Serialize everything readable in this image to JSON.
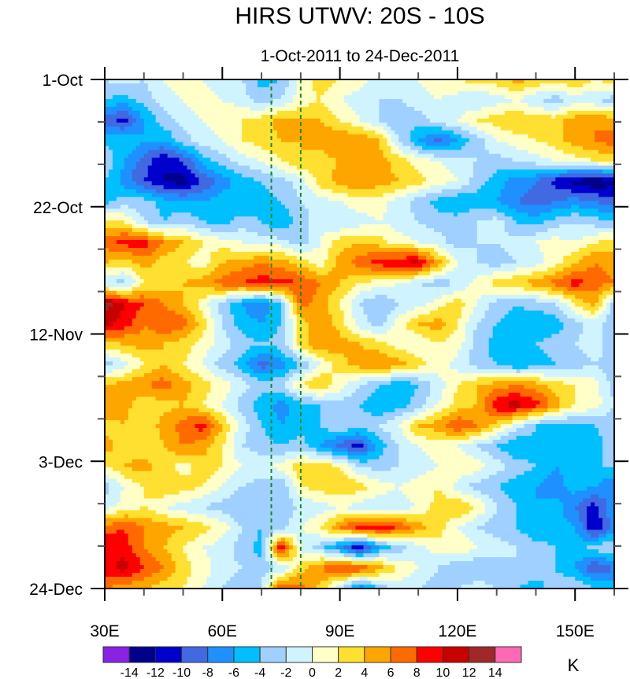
{
  "chart_data": {
    "type": "heatmap",
    "title": "HIRS UTWV: 20S - 10S",
    "subtitle": "1-Oct-2011 to 24-Dec-2011",
    "xlabel": "",
    "ylabel": "",
    "units_label": "K",
    "x_axis": {
      "range": [
        30,
        160
      ],
      "major_ticks": [
        30,
        60,
        90,
        120,
        150
      ],
      "major_tick_labels": [
        "30E",
        "60E",
        "90E",
        "120E",
        "150E"
      ],
      "minor_tick_step": 10
    },
    "y_axis": {
      "range_days": [
        0,
        84
      ],
      "direction": "time increases downward",
      "major_ticks_days": [
        0,
        21,
        42,
        63,
        84
      ],
      "major_tick_labels": [
        "1-Oct",
        "22-Oct",
        "12-Nov",
        "3-Dec",
        "24-Dec"
      ],
      "minor_tick_step_days": 7
    },
    "reference_lines": [
      {
        "longitude": 72.5,
        "style": "dashed",
        "color": "#1a8a1a"
      },
      {
        "longitude": 80,
        "style": "dashed",
        "color": "#1a8a1a"
      }
    ],
    "colorbar": {
      "levels": [
        -14,
        -12,
        -10,
        -8,
        -6,
        -4,
        -2,
        0,
        2,
        4,
        6,
        8,
        10,
        12,
        14
      ],
      "level_labels": [
        "-14",
        "-12",
        "-10",
        "-8",
        "-6",
        "-4",
        "-2",
        "0",
        "2",
        "4",
        "6",
        "8",
        "10",
        "12",
        "14"
      ],
      "colors": [
        "#8a22e6",
        "#00008b",
        "#0000cd",
        "#4169e1",
        "#1e90ff",
        "#00bfff",
        "#a0d0ff",
        "#d0f4ff",
        "#ffffc8",
        "#ffe030",
        "#ffa500",
        "#ff6a00",
        "#ff0000",
        "#c80000",
        "#a02828",
        "#ff69b4"
      ]
    },
    "grid": {
      "longitudes": [
        30,
        35,
        40,
        45,
        50,
        55,
        60,
        65,
        70,
        75,
        80,
        85,
        90,
        95,
        100,
        105,
        110,
        115,
        120,
        125,
        130,
        135,
        140,
        145,
        150,
        155,
        160
      ],
      "time_span_days": 84,
      "values": [
        [
          -2,
          -1,
          -2,
          0,
          1,
          0,
          -1,
          -2,
          -5,
          -4,
          1,
          3,
          2,
          1,
          -1,
          -2,
          0,
          1,
          2,
          3,
          3,
          5,
          4,
          3,
          4,
          2,
          3
        ],
        [
          -4,
          -5,
          -3,
          -1,
          0,
          1,
          0,
          -1,
          -3,
          -2,
          1,
          2,
          0,
          -1,
          -2,
          -2,
          -1,
          0,
          -1,
          -2,
          -1,
          0,
          -2,
          -3,
          -1,
          -2,
          -3
        ],
        [
          -9,
          -11,
          -6,
          -3,
          -1,
          0,
          1,
          2,
          3,
          5,
          4,
          4,
          2,
          0,
          -2,
          -4,
          -3,
          -1,
          0,
          2,
          3,
          4,
          3,
          3,
          5,
          6,
          5
        ],
        [
          -5,
          -4,
          -6,
          -6,
          -3,
          -1,
          0,
          2,
          3,
          4,
          4,
          5,
          6,
          6,
          4,
          -2,
          -6,
          -9,
          -6,
          -3,
          0,
          1,
          2,
          3,
          5,
          6,
          7
        ],
        [
          -2,
          -6,
          -9,
          -12,
          -10,
          -5,
          -3,
          -1,
          0,
          2,
          4,
          3,
          4,
          5,
          5,
          3,
          1,
          0,
          -1,
          -2,
          -3,
          -2,
          -1,
          0,
          1,
          2,
          3
        ],
        [
          -4,
          -7,
          -10,
          -12,
          -13,
          -10,
          -7,
          -5,
          -4,
          -3,
          -1,
          3,
          5,
          6,
          5,
          4,
          3,
          1,
          0,
          -3,
          -5,
          -7,
          -8,
          -11,
          -13,
          -14,
          -13
        ],
        [
          -5,
          -3,
          -3,
          -5,
          -6,
          -6,
          -5,
          -6,
          -5,
          -4,
          -2,
          -1,
          0,
          1,
          1,
          -1,
          -3,
          -5,
          -6,
          -5,
          -6,
          -8,
          -9,
          -8,
          -7,
          -8,
          -9
        ],
        [
          3,
          2,
          -2,
          -4,
          -2,
          -4,
          -5,
          -3,
          -4,
          -6,
          -3,
          -1,
          -2,
          -1,
          0,
          -1,
          -2,
          -3,
          -3,
          -2,
          -1,
          -4,
          -5,
          -3,
          -2,
          -3,
          -4
        ],
        [
          7,
          9,
          9,
          6,
          4,
          2,
          1,
          0,
          -1,
          -1,
          -3,
          0,
          3,
          4,
          3,
          1,
          0,
          -1,
          -3,
          -2,
          -2,
          -1,
          0,
          1,
          0,
          2,
          3
        ],
        [
          4,
          3,
          5,
          3,
          2,
          1,
          4,
          5,
          6,
          5,
          3,
          1,
          5,
          7,
          9,
          10,
          11,
          5,
          0,
          -2,
          -3,
          -2,
          -1,
          1,
          4,
          6,
          5
        ],
        [
          -2,
          -3,
          2,
          3,
          4,
          5,
          7,
          8,
          9,
          9,
          8,
          6,
          4,
          2,
          1,
          0,
          -2,
          -3,
          -2,
          1,
          3,
          4,
          5,
          7,
          9,
          7,
          6
        ],
        [
          13,
          10,
          8,
          6,
          4,
          1,
          -3,
          -6,
          -8,
          -4,
          7,
          5,
          2,
          -2,
          -4,
          -2,
          -1,
          1,
          3,
          0,
          -3,
          -4,
          -3,
          -2,
          2,
          5,
          -3
        ],
        [
          11,
          9,
          6,
          8,
          7,
          3,
          -2,
          -5,
          -6,
          -4,
          3,
          6,
          3,
          -1,
          -3,
          1,
          4,
          5,
          2,
          -2,
          -4,
          -5,
          -6,
          -5,
          -3,
          -1,
          -4
        ],
        [
          3,
          4,
          5,
          4,
          3,
          1,
          -1,
          -3,
          -4,
          -3,
          3,
          6,
          5,
          4,
          3,
          1,
          0,
          2,
          1,
          -3,
          -5,
          -5,
          -4,
          -3,
          -2,
          -1,
          -3
        ],
        [
          -3,
          -1,
          2,
          4,
          2,
          0,
          -3,
          -5,
          -9,
          -7,
          -4,
          0,
          3,
          5,
          6,
          5,
          3,
          1,
          -1,
          -3,
          -4,
          -6,
          -5,
          -4,
          -3,
          -2,
          -3
        ],
        [
          4,
          5,
          6,
          7,
          5,
          3,
          1,
          -1,
          -3,
          -2,
          2,
          4,
          1,
          -2,
          -4,
          -6,
          -4,
          -1,
          2,
          4,
          5,
          6,
          5,
          3,
          2,
          1,
          -3
        ],
        [
          6,
          5,
          2,
          3,
          4,
          2,
          0,
          -3,
          -5,
          -7,
          -5,
          -4,
          -3,
          -4,
          -6,
          -5,
          -3,
          0,
          3,
          4,
          10,
          11,
          9,
          5,
          2,
          1,
          -2
        ],
        [
          3,
          4,
          2,
          5,
          7,
          9,
          4,
          -1,
          -4,
          -6,
          -5,
          -4,
          -2,
          -3,
          -2,
          0,
          4,
          5,
          8,
          6,
          3,
          -1,
          -4,
          -5,
          -5,
          -4,
          -3
        ],
        [
          5,
          3,
          2,
          4,
          6,
          5,
          2,
          -2,
          -3,
          -4,
          -3,
          -6,
          -9,
          -11,
          -5,
          -2,
          0,
          1,
          0,
          -2,
          -4,
          -6,
          -5,
          -6,
          -4,
          -5,
          -3
        ],
        [
          2,
          4,
          5,
          3,
          1,
          3,
          2,
          0,
          -1,
          1,
          3,
          4,
          2,
          -2,
          -3,
          -2,
          -1,
          0,
          2,
          1,
          -1,
          -3,
          -4,
          -6,
          -5,
          -4,
          -4
        ],
        [
          -3,
          0,
          2,
          4,
          3,
          2,
          0,
          -2,
          -3,
          -4,
          2,
          3,
          4,
          3,
          1,
          0,
          1,
          2,
          -1,
          -3,
          -4,
          -5,
          -6,
          -7,
          -5,
          -6,
          -8
        ],
        [
          -1,
          1,
          2,
          0,
          -1,
          -2,
          -3,
          -4,
          -4,
          -3,
          -2,
          -1,
          0,
          -1,
          -2,
          -1,
          0,
          3,
          4,
          2,
          -2,
          -4,
          -6,
          -5,
          -8,
          -11,
          -6
        ],
        [
          7,
          8,
          6,
          5,
          4,
          3,
          1,
          -2,
          -4,
          -3,
          0,
          2,
          6,
          9,
          10,
          8,
          5,
          3,
          0,
          -2,
          -3,
          -4,
          -6,
          -5,
          -6,
          -12,
          -7
        ],
        [
          10,
          9,
          6,
          4,
          2,
          0,
          -1,
          -3,
          -5,
          10,
          -1,
          -3,
          -7,
          -12,
          -6,
          -3,
          -1,
          1,
          2,
          0,
          -1,
          -2,
          -3,
          -4,
          -5,
          -3,
          -2
        ],
        [
          9,
          11,
          8,
          6,
          3,
          1,
          -1,
          -2,
          -3,
          -2,
          3,
          6,
          9,
          8,
          5,
          2,
          0,
          -2,
          -4,
          -4,
          -3,
          -2,
          -3,
          -4,
          -6,
          -10,
          -8
        ],
        [
          6,
          5,
          4,
          3,
          2,
          0,
          -2,
          -3,
          -2,
          8,
          7,
          3,
          -2,
          -8,
          -4,
          -1,
          -2,
          -3,
          -2,
          -1,
          -2,
          -4,
          -5,
          -3,
          -2,
          -4,
          -5
        ]
      ]
    }
  }
}
